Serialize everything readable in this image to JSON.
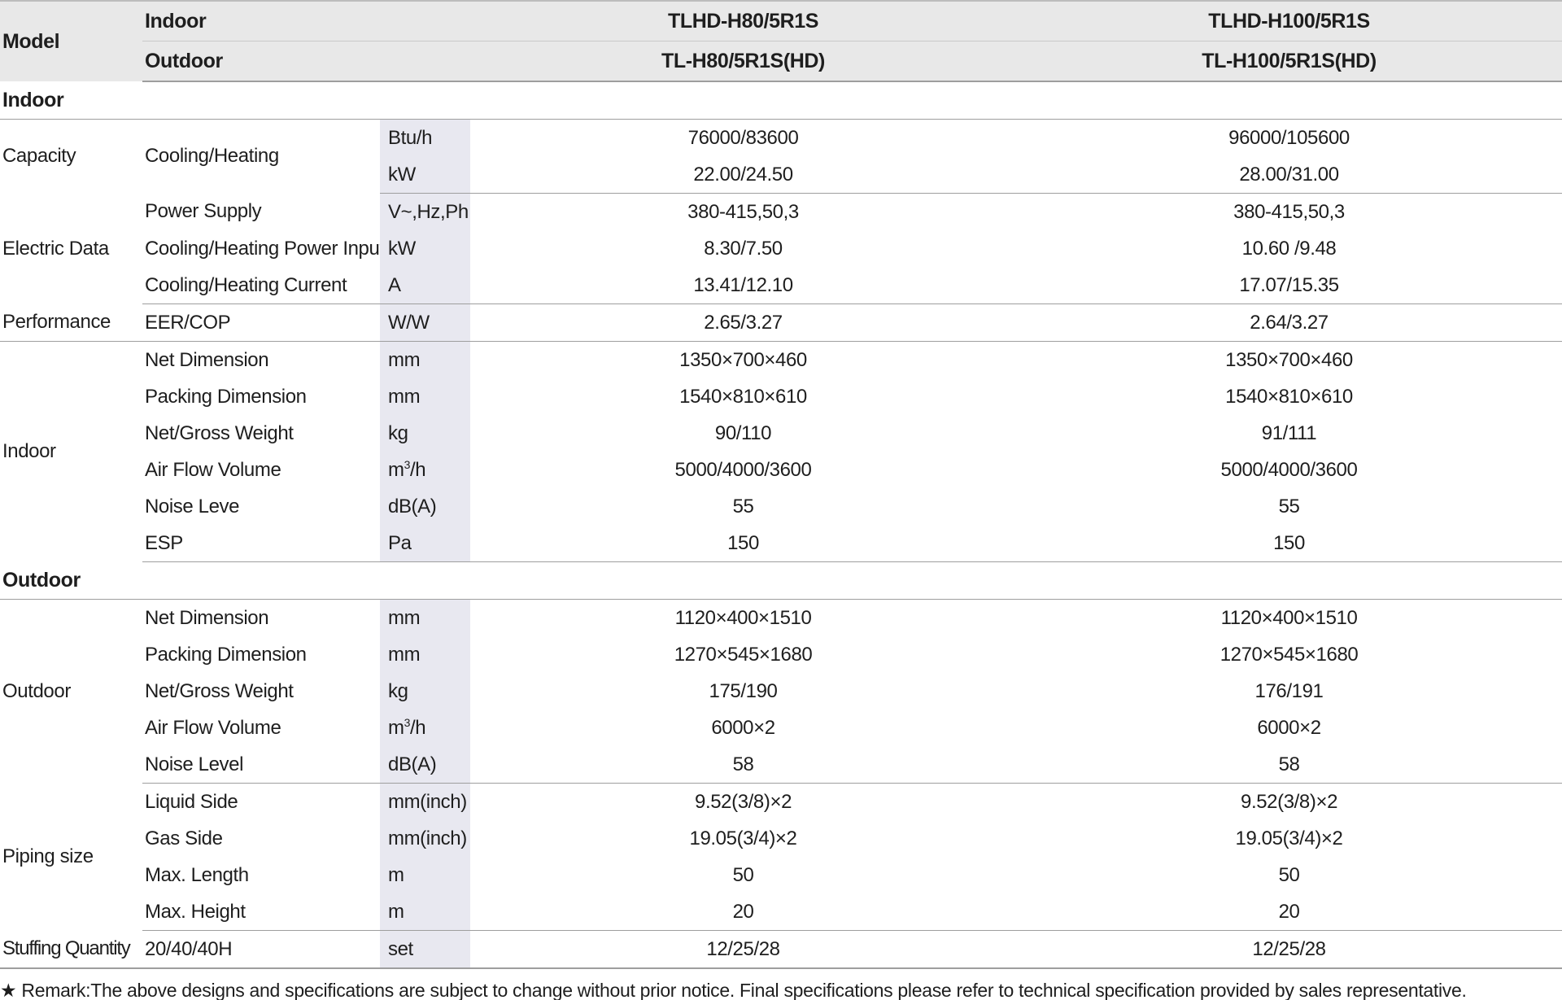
{
  "header": {
    "model_label": "Model",
    "indoor_label": "Indoor",
    "outdoor_label": "Outdoor",
    "models": [
      {
        "indoor": "TLHD-H80/5R1S",
        "outdoor": "TL-H80/5R1S(HD)"
      },
      {
        "indoor": "TLHD-H100/5R1S",
        "outdoor": "TL-H100/5R1S(HD)"
      }
    ]
  },
  "sections": {
    "indoor": "Indoor",
    "outdoor": "Outdoor"
  },
  "groups": {
    "capacity": "Capacity",
    "electric": "Electric Data",
    "performance": "Performance",
    "indoor": "Indoor",
    "outdoor": "Outdoor",
    "piping": "Piping size",
    "stuffing": "Stuffing Quantity"
  },
  "rows": {
    "cap_btu": {
      "param": "Cooling/Heating",
      "unit": "Btu/h",
      "v1": "76000/83600",
      "v2": "96000/105600"
    },
    "cap_kw": {
      "param": "",
      "unit": "kW",
      "v1": "22.00/24.50",
      "v2": "28.00/31.00"
    },
    "power_supply": {
      "param": "Power Supply",
      "unit": "V~,Hz,Ph",
      "v1": "380-415,50,3",
      "v2": "380-415,50,3"
    },
    "power_input": {
      "param": "Cooling/Heating Power Input",
      "unit": "kW",
      "v1": "8.30/7.50",
      "v2": "10.60 /9.48"
    },
    "current": {
      "param": "Cooling/Heating Current",
      "unit": "A",
      "v1": "13.41/12.10",
      "v2": "17.07/15.35"
    },
    "eer": {
      "param": "EER/COP",
      "unit": "W/W",
      "v1": "2.65/3.27",
      "v2": "2.64/3.27"
    },
    "in_net_dim": {
      "param": "Net  Dimension",
      "unit": "mm",
      "v1": "1350×700×460",
      "v2": "1350×700×460"
    },
    "in_pack_dim": {
      "param": "Packing  Dimension",
      "unit": "mm",
      "v1": "1540×810×610",
      "v2": "1540×810×610"
    },
    "in_weight": {
      "param": "Net/Gross  Weight",
      "unit": "kg",
      "v1": "90/110",
      "v2": "91/111"
    },
    "in_airflow": {
      "param": "Air Flow Volume",
      "unit_base": "m",
      "unit_sup": "3",
      "unit_tail": "/h",
      "v1": "5000/4000/3600",
      "v2": "5000/4000/3600"
    },
    "in_noise": {
      "param": "Noise Leve",
      "unit": "dB(A)",
      "v1": "55",
      "v2": "55"
    },
    "in_esp": {
      "param": "ESP",
      "unit": "Pa",
      "v1": "150",
      "v2": "150"
    },
    "out_net_dim": {
      "param": "Net  Dimension",
      "unit": "mm",
      "v1": "1120×400×1510",
      "v2": "1120×400×1510"
    },
    "out_pack_dim": {
      "param": "Packing  Dimension",
      "unit": "mm",
      "v1": "1270×545×1680",
      "v2": "1270×545×1680"
    },
    "out_weight": {
      "param": "Net/Gross  Weight",
      "unit": "kg",
      "v1": "175/190",
      "v2": "176/191"
    },
    "out_airflow": {
      "param": "Air Flow Volume",
      "unit_base": "m",
      "unit_sup": "3",
      "unit_tail": "/h",
      "v1": "6000×2",
      "v2": "6000×2"
    },
    "out_noise": {
      "param": "Noise Level",
      "unit": "dB(A)",
      "v1": "58",
      "v2": "58"
    },
    "liquid": {
      "param": "Liquid Side",
      "unit": "mm(inch)",
      "v1": "9.52(3/8)×2",
      "v2": "9.52(3/8)×2"
    },
    "gas": {
      "param": "Gas Side",
      "unit": "mm(inch)",
      "v1": "19.05(3/4)×2",
      "v2": "19.05(3/4)×2"
    },
    "max_length": {
      "param": "Max. Length",
      "unit": "m",
      "v1": "50",
      "v2": "50"
    },
    "max_height": {
      "param": "Max. Height",
      "unit": "m",
      "v1": "20",
      "v2": "20"
    },
    "stuffing": {
      "param": "20/40/40H",
      "unit": "set",
      "v1": "12/25/28",
      "v2": "12/25/28"
    }
  },
  "remark": "★ Remark:The above designs and specifications are subject to change without prior notice. Final specifications please refer to technical specification provided by sales representative."
}
